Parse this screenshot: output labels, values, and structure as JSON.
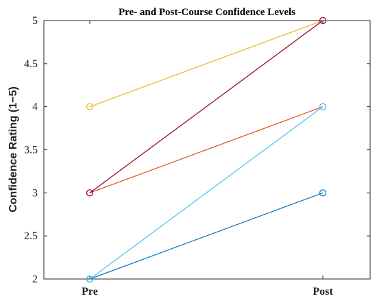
{
  "chart_data": {
    "type": "line",
    "title": "Pre- and Post-Course Confidence Levels",
    "xlabel": "",
    "ylabel": "Confidence Rating (1−5)",
    "categories": [
      "Pre",
      "Post"
    ],
    "ylim": [
      2,
      5
    ],
    "yticks": [
      2,
      2.5,
      3,
      3.5,
      4,
      4.5,
      5
    ],
    "ytick_labels": [
      "2",
      "2.5",
      "3",
      "3.5",
      "4",
      "4.5",
      "5"
    ],
    "grid": false,
    "legend": "none",
    "marker": "open-circle",
    "series": [
      {
        "values": [
          2,
          3
        ],
        "color": "#0072BD"
      },
      {
        "values": [
          3,
          4
        ],
        "color": "#D95319"
      },
      {
        "values": [
          4,
          5
        ],
        "color": "#EDB120"
      },
      {
        "values": [
          3,
          5
        ],
        "color": "#7E2F8E"
      },
      {
        "values": [
          2,
          4
        ],
        "color": "#4DBEEE"
      },
      {
        "values": [
          3,
          5
        ],
        "color": "#A2142F"
      }
    ]
  }
}
